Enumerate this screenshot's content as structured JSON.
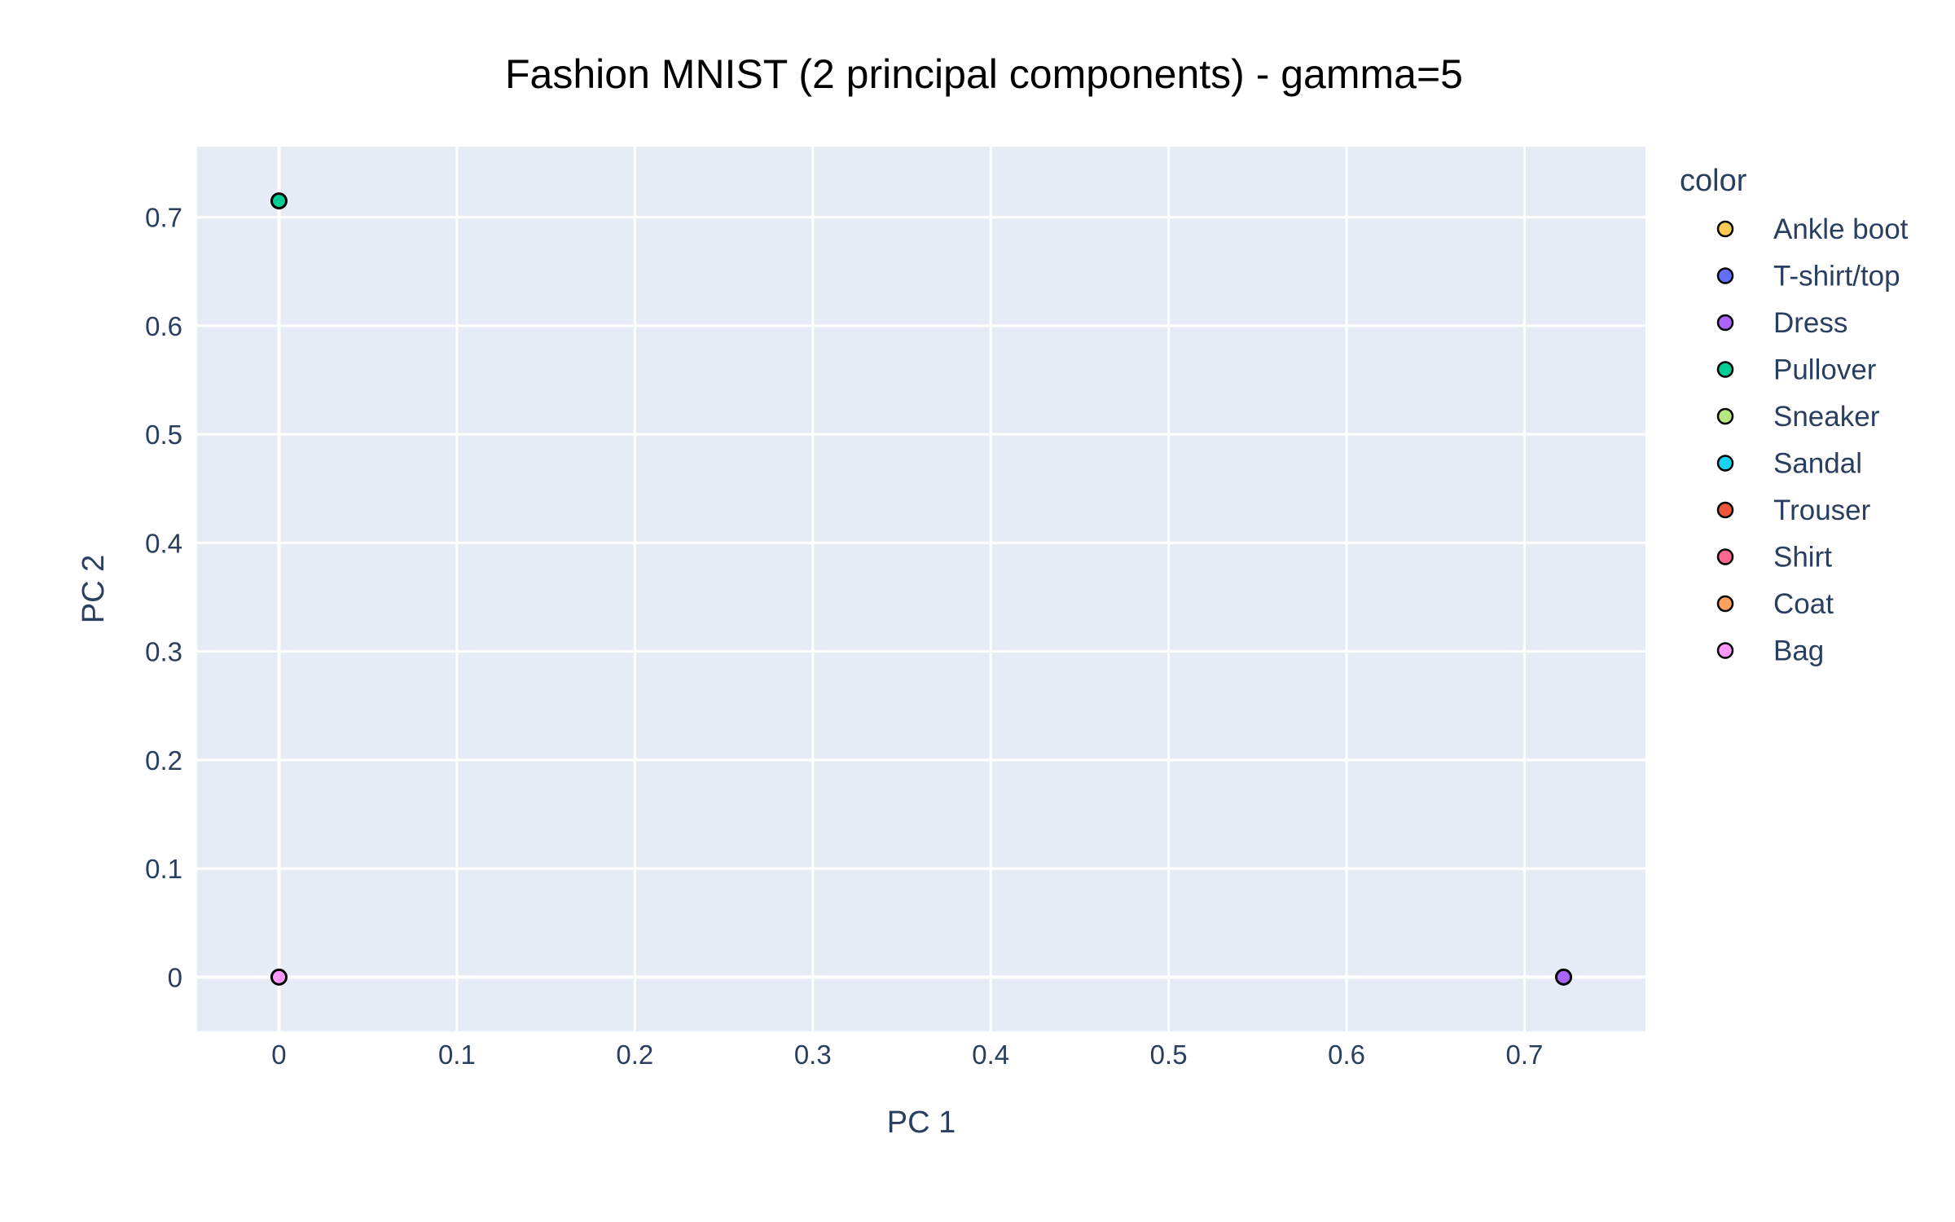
{
  "chart_data": {
    "type": "scatter",
    "title": "Fashion MNIST (2 principal components) - gamma=5",
    "xlabel": "PC 1",
    "ylabel": "PC 2",
    "xlim": [
      -0.046,
      0.768
    ],
    "ylim": [
      -0.05,
      0.765
    ],
    "x_ticks": [
      0,
      0.1,
      0.2,
      0.3,
      0.4,
      0.5,
      0.6,
      0.7
    ],
    "x_tick_labels": [
      "0",
      "0.1",
      "0.2",
      "0.3",
      "0.4",
      "0.5",
      "0.6",
      "0.7"
    ],
    "y_ticks": [
      0,
      0.1,
      0.2,
      0.3,
      0.4,
      0.5,
      0.6,
      0.7
    ],
    "y_tick_labels": [
      "0",
      "0.1",
      "0.2",
      "0.3",
      "0.4",
      "0.5",
      "0.6",
      "0.7"
    ],
    "grid": true,
    "legend_title": "color",
    "legend_position": "right",
    "plot_bgcolor": "#E5ECF6",
    "series": [
      {
        "name": "Ankle boot",
        "color": "#FECB52",
        "points": []
      },
      {
        "name": "T-shirt/top",
        "color": "#636EFA",
        "points": []
      },
      {
        "name": "Dress",
        "color": "#AB63FA",
        "points": [
          [
            0.722,
            0.0
          ]
        ]
      },
      {
        "name": "Pullover",
        "color": "#00CC96",
        "points": [
          [
            0.0,
            0.715
          ]
        ]
      },
      {
        "name": "Sneaker",
        "color": "#B6E880",
        "points": []
      },
      {
        "name": "Sandal",
        "color": "#19D3F3",
        "points": []
      },
      {
        "name": "Trouser",
        "color": "#EF553B",
        "points": []
      },
      {
        "name": "Shirt",
        "color": "#FF6692",
        "points": []
      },
      {
        "name": "Coat",
        "color": "#FFA15A",
        "points": []
      },
      {
        "name": "Bag",
        "color": "#FF97FF",
        "points": [
          [
            0.0,
            0.0
          ]
        ]
      }
    ]
  }
}
